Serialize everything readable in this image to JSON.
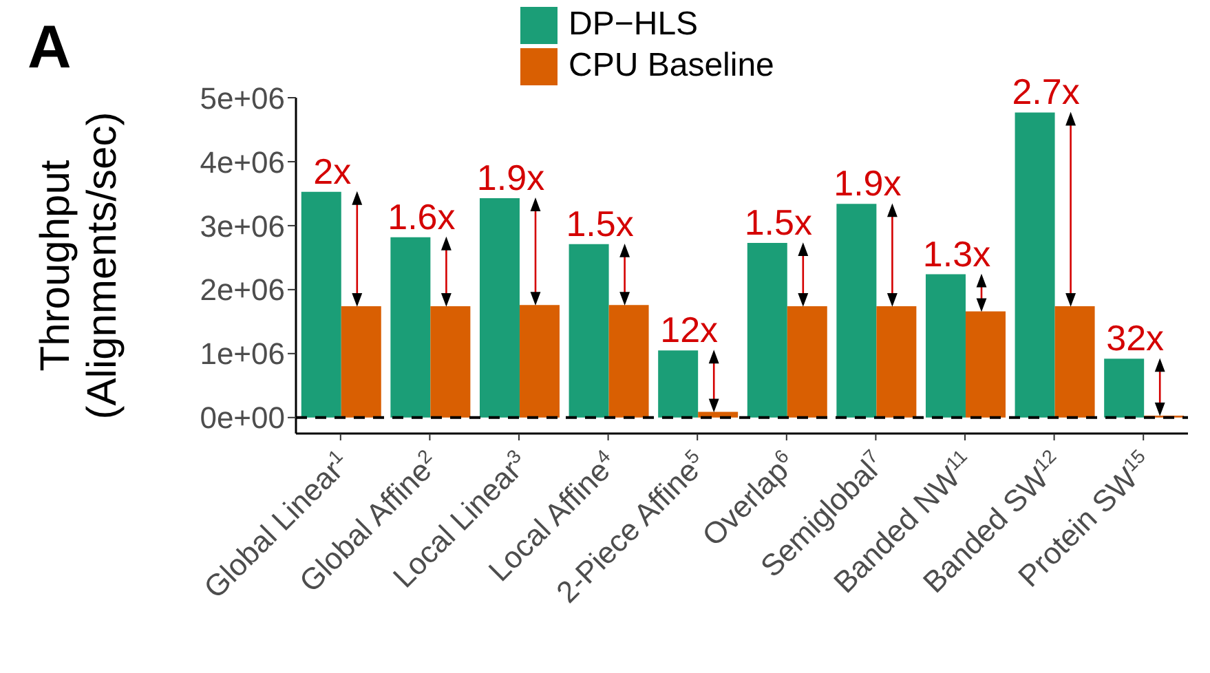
{
  "chart_data": {
    "type": "bar",
    "title": "A",
    "ylabel": "Throughput\n(Alignments/sec)",
    "categories": [
      "Global Linear$^{1}$",
      "Global Affine$^{2}$",
      "Local Linear$^{3}$",
      "Local Affine$^{4}$",
      "2-Piece Affine$^{5}$",
      "Overlap$^{6}$",
      "Semiglobal$^{7}$",
      "Banded NW$^{11}$",
      "Banded SW$^{12}$",
      "Protein SW$^{15}$"
    ],
    "series": [
      {
        "name": "DP−HLS",
        "color": "#1b9e77",
        "values": [
          3530000,
          2820000,
          3430000,
          2710000,
          1050000,
          2730000,
          3340000,
          2240000,
          4770000,
          920000
        ]
      },
      {
        "name": "CPU Baseline",
        "color": "#d95f02",
        "values": [
          1740000,
          1740000,
          1760000,
          1760000,
          90000,
          1740000,
          1740000,
          1660000,
          1740000,
          30000
        ]
      }
    ],
    "ylim": [
      -250000,
      5000000
    ],
    "yticks": [
      {
        "value": 0,
        "label": "0e+00"
      },
      {
        "value": 1000000,
        "label": "1e+06"
      },
      {
        "value": 2000000,
        "label": "2e+06"
      },
      {
        "value": 3000000,
        "label": "3e+06"
      },
      {
        "value": 4000000,
        "label": "4e+06"
      },
      {
        "value": 5000000,
        "label": "5e+06"
      }
    ],
    "ref_lines": [
      {
        "axis": "y",
        "value": 0,
        "color": "#000000",
        "line_style": "dashed"
      }
    ],
    "annotations": [
      {
        "text": "2x",
        "x": "Global Linear$^{1}$",
        "y": 3530000
      },
      {
        "text": "1.6x",
        "x": "Global Affine$^{2}$",
        "y": 2820000
      },
      {
        "text": "1.9x",
        "x": "Local Linear$^{3}$",
        "y": 3430000
      },
      {
        "text": "1.5x",
        "x": "Local Affine$^{4}$",
        "y": 2710000
      },
      {
        "text": "12x",
        "x": "2-Piece Affine$^{5}$",
        "y": 1050000
      },
      {
        "text": "1.5x",
        "x": "Overlap$^{6}$",
        "y": 2730000
      },
      {
        "text": "1.9x",
        "x": "Semiglobal$^{7}$",
        "y": 3340000
      },
      {
        "text": "1.3x",
        "x": "Banded NW$^{11}$",
        "y": 2240000
      },
      {
        "text": "2.7x",
        "x": "Banded SW$^{12}$",
        "y": 4770000
      },
      {
        "text": "32x",
        "x": "Protein SW$^{15}$",
        "y": 920000
      }
    ],
    "grid": false,
    "legend": "top"
  }
}
